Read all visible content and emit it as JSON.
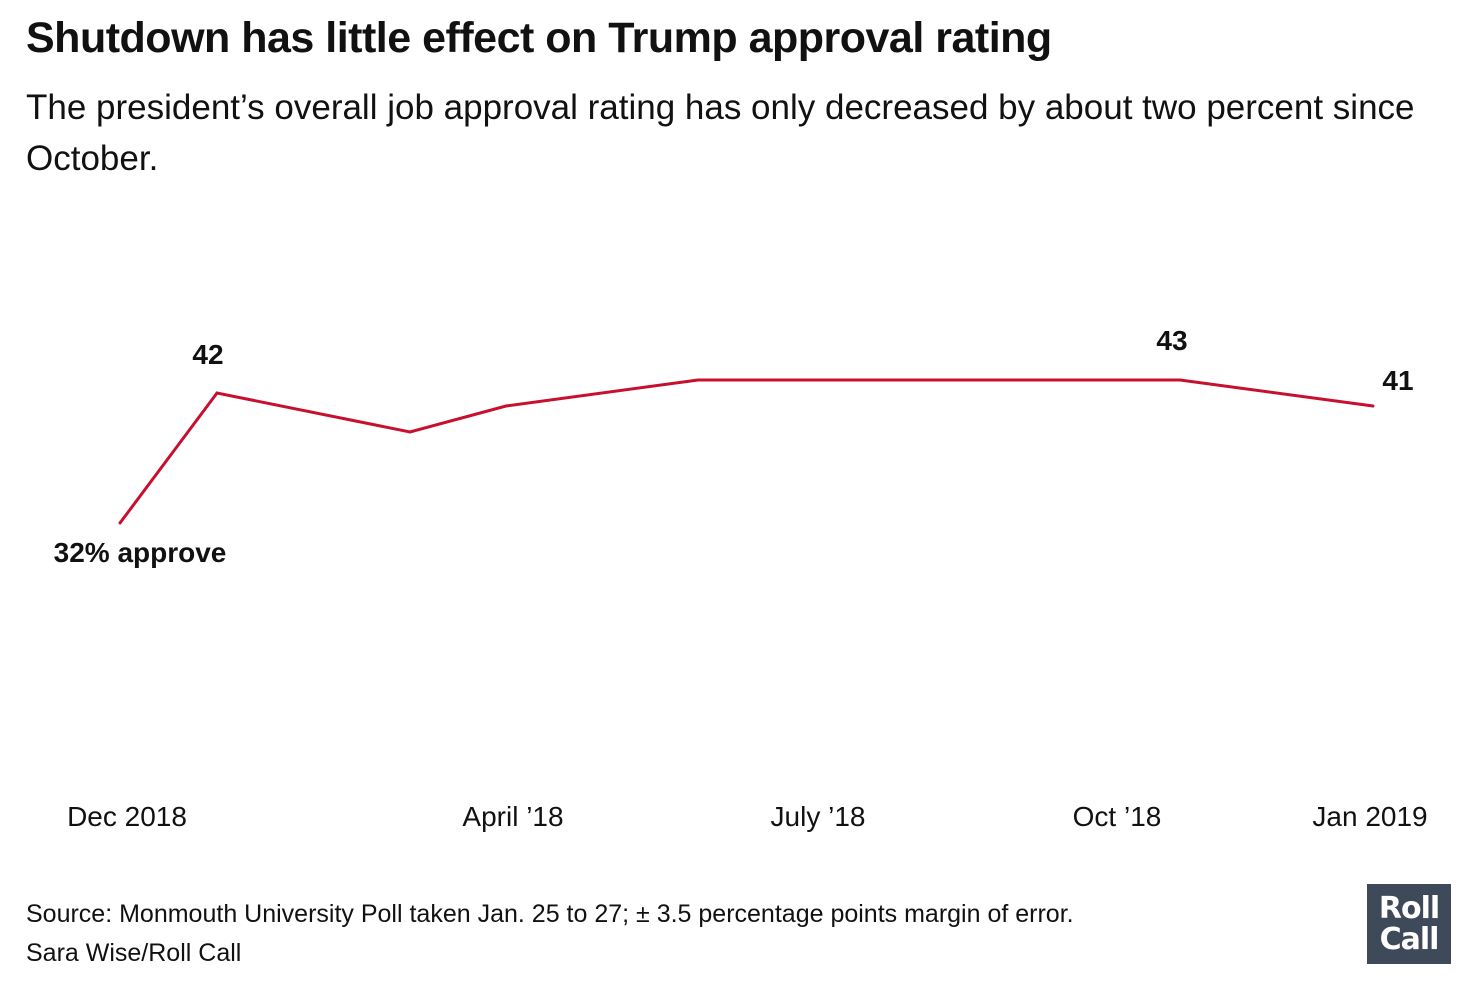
{
  "header": {
    "title": "Shutdown has little effect on Trump approval rating",
    "subtitle": "The president’s overall job approval rating has only decreased by about two percent since October."
  },
  "chart_data": {
    "type": "line",
    "series": [
      {
        "color": "#c8102e",
        "values": [
          32,
          42,
          39,
          41,
          43,
          43,
          43,
          43,
          41
        ]
      }
    ],
    "x": [
      0,
      1,
      2,
      3,
      4,
      5,
      6,
      7,
      8
    ],
    "x_tick_labels": [
      "Dec 2018",
      "April ’18",
      "July ’18",
      "Oct ’18",
      "Jan 2019"
    ],
    "data_labels": [
      {
        "index": 0,
        "text": "32% approve"
      },
      {
        "index": 1,
        "text": "42"
      },
      {
        "index": 7,
        "text": "43"
      },
      {
        "index": 8,
        "text": "41"
      }
    ],
    "grid": false,
    "legend": "none"
  },
  "footer": {
    "source": "Source: Monmouth University Poll taken Jan. 25 to 27; ± 3.5 percentage points margin of error.",
    "credit": "Sara Wise/Roll Call"
  },
  "logo": {
    "line1": "Roll",
    "line2": "Call",
    "color": "#3e4a5a"
  }
}
